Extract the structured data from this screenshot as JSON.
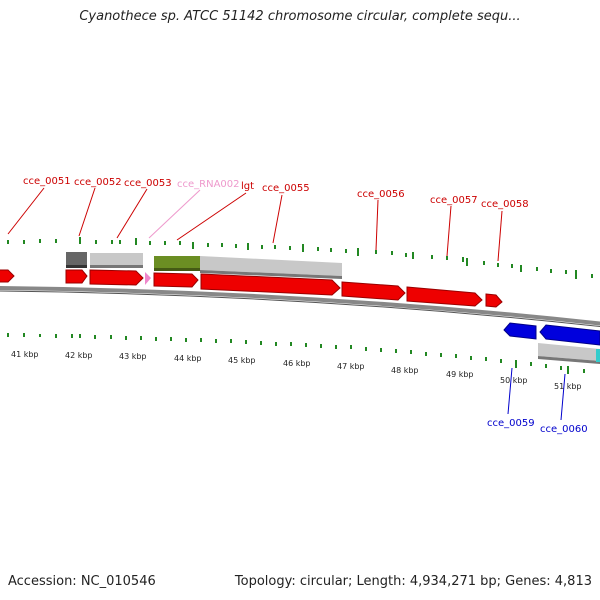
{
  "title": "Cyanothece sp. ATCC 51142 chromosome circular, complete sequ...",
  "footer": {
    "accession": "Accession: NC_010546",
    "summary": "Topology: circular; Length: 4,934,271 bp; Genes: 4,813"
  },
  "colors": {
    "forward_gene": "#ee0000",
    "reverse_gene": "#0000dd",
    "rna_gene": "#ee88cc",
    "forward_label": "#cc0000",
    "reverse_label": "#0000cc",
    "rna_label": "#ee99cc",
    "tick": "#228822",
    "backbone": "#888888",
    "grey_feature": "#c0c0c0",
    "dark_feature": "#666666",
    "green_feature": "#6b8e23"
  },
  "gene_labels": [
    {
      "name": "cce_0051",
      "strand": "forward"
    },
    {
      "name": "cce_0052",
      "strand": "forward"
    },
    {
      "name": "cce_0053",
      "strand": "forward"
    },
    {
      "name": "cce_RNA002",
      "strand": "rna"
    },
    {
      "name": "lgt",
      "strand": "forward"
    },
    {
      "name": "cce_0055",
      "strand": "forward"
    },
    {
      "name": "cce_0056",
      "strand": "forward"
    },
    {
      "name": "cce_0057",
      "strand": "forward"
    },
    {
      "name": "cce_0058",
      "strand": "forward"
    },
    {
      "name": "cce_0059",
      "strand": "reverse"
    },
    {
      "name": "cce_0060",
      "strand": "reverse"
    }
  ],
  "kbp_labels": [
    "41 kbp",
    "42 kbp",
    "43 kbp",
    "44 kbp",
    "45 kbp",
    "46 kbp",
    "47 kbp",
    "48 kbp",
    "49 kbp",
    "50 kbp",
    "51 kbp"
  ]
}
